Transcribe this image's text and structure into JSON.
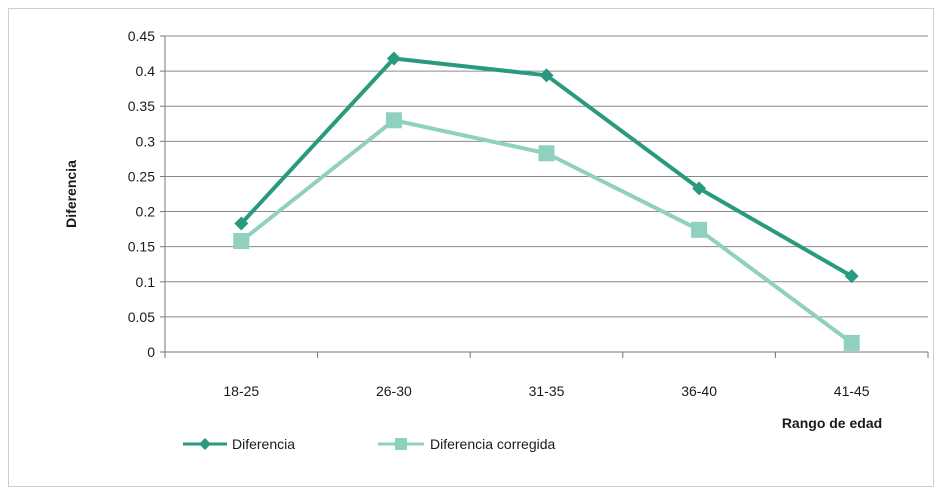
{
  "chart_data": {
    "type": "line",
    "categories": [
      "18-25",
      "26-30",
      "31-35",
      "36-40",
      "41-45"
    ],
    "series": [
      {
        "name": "Diferencia",
        "values": [
          0.183,
          0.418,
          0.394,
          0.233,
          0.108
        ],
        "color": "#2a9a7f",
        "marker": "diamond"
      },
      {
        "name": "Diferencia corregida",
        "values": [
          0.158,
          0.33,
          0.283,
          0.174,
          0.013
        ],
        "color": "#8fd0bf",
        "marker": "square"
      }
    ],
    "xlabel": "Rango de edad",
    "ylabel": "Diferencia",
    "ylim": [
      0,
      0.45
    ],
    "yticks": [
      "0",
      "0.05",
      "0.1",
      "0.15",
      "0.2",
      "0.25",
      "0.3",
      "0.35",
      "0.4",
      "0.45"
    ],
    "grid": true,
    "legend_position": "bottom-left"
  }
}
